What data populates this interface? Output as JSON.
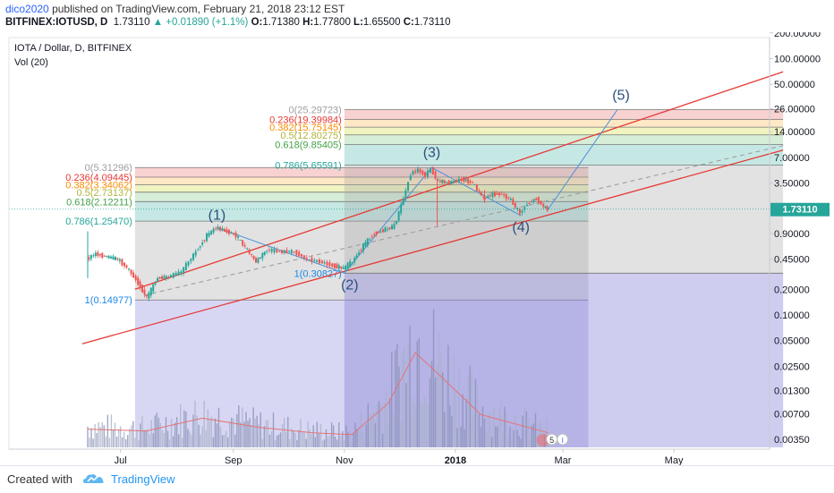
{
  "header": {
    "user": "dico2020",
    "published_text": "published on TradingView.com, February 21, 2018 23:12 EST",
    "symbol_line": "BITFINEX:IOTUSD, D",
    "last": "1.73110",
    "change": "+0.01890 (+1.1%)",
    "o_label": "O:",
    "o": "1.71380",
    "h_label": "H:",
    "h": "1.77800",
    "l_label": "L:",
    "l": "1.65500",
    "c_label": "C:",
    "c": "1.73110"
  },
  "footer": {
    "created_with": "Created with",
    "brand": "TradingView"
  },
  "chart_data": {
    "type": "candlestick",
    "title": "IOTA / Dollar, D, BITFINEX",
    "indicator": "Vol (20)",
    "y_scale": "log",
    "y_ticks": [
      "200.00000",
      "100.00000",
      "50.00000",
      "26.00000",
      "14.00000",
      "7.00000",
      "3.50000",
      "1.73110",
      "0.90000",
      "0.45000",
      "0.20000",
      "0.10000",
      "0.05000",
      "0.02500",
      "0.01300",
      "0.00700",
      "0.00350"
    ],
    "x_ticks": [
      "Jul",
      "Sep",
      "Nov",
      "2018",
      "Mar",
      "May"
    ],
    "last_price_label": "1.73110",
    "colors": {
      "up": "#26a69a",
      "down": "#ef5350",
      "trend": "#e53935",
      "wave": "#4a90d9",
      "last_price": "#26a69a"
    },
    "price_path": [
      {
        "date": "2017-06-13",
        "close": 0.45
      },
      {
        "date": "2017-06-18",
        "close": 0.52
      },
      {
        "date": "2017-06-24",
        "close": 0.48
      },
      {
        "date": "2017-06-30",
        "close": 0.45
      },
      {
        "date": "2017-07-05",
        "close": 0.36
      },
      {
        "date": "2017-07-10",
        "close": 0.26
      },
      {
        "date": "2017-07-16",
        "close": 0.16
      },
      {
        "date": "2017-07-22",
        "close": 0.27
      },
      {
        "date": "2017-07-28",
        "close": 0.28
      },
      {
        "date": "2017-08-04",
        "close": 0.32
      },
      {
        "date": "2017-08-12",
        "close": 0.55
      },
      {
        "date": "2017-08-18",
        "close": 0.85
      },
      {
        "date": "2017-08-23",
        "close": 1.05
      },
      {
        "date": "2017-08-29",
        "close": 0.95
      },
      {
        "date": "2017-09-03",
        "close": 0.85
      },
      {
        "date": "2017-09-08",
        "close": 0.62
      },
      {
        "date": "2017-09-14",
        "close": 0.42
      },
      {
        "date": "2017-09-20",
        "close": 0.58
      },
      {
        "date": "2017-09-27",
        "close": 0.55
      },
      {
        "date": "2017-10-05",
        "close": 0.55
      },
      {
        "date": "2017-10-12",
        "close": 0.45
      },
      {
        "date": "2017-10-19",
        "close": 0.42
      },
      {
        "date": "2017-10-26",
        "close": 0.38
      },
      {
        "date": "2017-11-01",
        "close": 0.35
      },
      {
        "date": "2017-11-06",
        "close": 0.42
      },
      {
        "date": "2017-11-12",
        "close": 0.65
      },
      {
        "date": "2017-11-18",
        "close": 0.9
      },
      {
        "date": "2017-11-24",
        "close": 1.0
      },
      {
        "date": "2017-11-29",
        "close": 1.1
      },
      {
        "date": "2017-12-04",
        "close": 2.3
      },
      {
        "date": "2017-12-08",
        "close": 4.5
      },
      {
        "date": "2017-12-12",
        "close": 5.0
      },
      {
        "date": "2017-12-16",
        "close": 4.3
      },
      {
        "date": "2017-12-19",
        "close": 5.1
      },
      {
        "date": "2017-12-23",
        "close": 3.7
      },
      {
        "date": "2017-12-29",
        "close": 3.5
      },
      {
        "date": "2018-01-05",
        "close": 3.9
      },
      {
        "date": "2018-01-11",
        "close": 3.5
      },
      {
        "date": "2018-01-17",
        "close": 2.3
      },
      {
        "date": "2018-01-22",
        "close": 2.6
      },
      {
        "date": "2018-01-27",
        "close": 2.6
      },
      {
        "date": "2018-02-01",
        "close": 2.2
      },
      {
        "date": "2018-02-06",
        "close": 1.55
      },
      {
        "date": "2018-02-10",
        "close": 2.0
      },
      {
        "date": "2018-02-15",
        "close": 2.3
      },
      {
        "date": "2018-02-19",
        "close": 1.85
      },
      {
        "date": "2018-02-21",
        "close": 1.7311
      }
    ],
    "volume_ma": [
      {
        "date": "2017-06-13",
        "v": 0.5
      },
      {
        "date": "2017-07-15",
        "v": 0.45
      },
      {
        "date": "2017-08-15",
        "v": 0.8
      },
      {
        "date": "2017-09-15",
        "v": 0.55
      },
      {
        "date": "2017-10-15",
        "v": 0.4
      },
      {
        "date": "2017-11-05",
        "v": 0.35
      },
      {
        "date": "2017-11-25",
        "v": 1.2
      },
      {
        "date": "2017-12-10",
        "v": 2.6
      },
      {
        "date": "2017-12-25",
        "v": 1.9
      },
      {
        "date": "2018-01-15",
        "v": 0.9
      },
      {
        "date": "2018-02-21",
        "v": 0.4
      }
    ],
    "fib_retracements": [
      {
        "from_date": "2017-07-09",
        "to_date": "2018-03-15",
        "levels": [
          {
            "ratio": "0",
            "price": 5.31296,
            "label": "0(5.31296)"
          },
          {
            "ratio": "0.236",
            "price": 4.09445,
            "label": "0.236(4.09445)"
          },
          {
            "ratio": "0.382",
            "price": 3.34062,
            "label": "0.382(3.34062)"
          },
          {
            "ratio": "0.5",
            "price": 2.73137,
            "label": "0.5(2.73137)"
          },
          {
            "ratio": "0.618",
            "price": 2.12211,
            "label": "0.618(2.12211)"
          },
          {
            "ratio": "0.786",
            "price": 1.2547,
            "label": "0.786(1.25470)"
          },
          {
            "ratio": "1",
            "price": 0.14977,
            "label": "1(0.14977)"
          }
        ]
      },
      {
        "from_date": "2017-11-01",
        "to_date": "2018-06-30",
        "levels": [
          {
            "ratio": "0",
            "price": 25.29723,
            "label": "0(25.29723)"
          },
          {
            "ratio": "0.236",
            "price": 19.39984,
            "label": "0.236(19.39984)"
          },
          {
            "ratio": "0.382",
            "price": 15.75145,
            "label": "0.382(15.75145)"
          },
          {
            "ratio": "0.5",
            "price": 12.80275,
            "label": "0.5(12.80275)"
          },
          {
            "ratio": "0.618",
            "price": 9.85405,
            "label": "0.618(9.85405)"
          },
          {
            "ratio": "0.786",
            "price": 5.65591,
            "label": "0.786(5.65591)"
          },
          {
            "ratio": "1",
            "price": 0.30827,
            "label": "1(0.30827)"
          }
        ]
      }
    ],
    "fib_zone_colors": [
      "#ef9a9a",
      "#ffcc80",
      "#dce775",
      "#a5d6a7",
      "#80cbc4",
      "#90caf9"
    ],
    "elliott_waves": [
      {
        "label": "(1)",
        "date": "2017-08-23",
        "price": 1.05
      },
      {
        "label": "(2)",
        "date": "2017-11-01",
        "price": 0.30827
      },
      {
        "label": "(3)",
        "date": "2017-12-19",
        "price": 5.31
      },
      {
        "label": "(4)",
        "date": "2018-02-06",
        "price": 1.45
      },
      {
        "label": "(5)",
        "date": "2018-03-31",
        "price": 25.29723
      }
    ],
    "wave5_projection": [
      {
        "date": "2018-02-21",
        "price": 1.7311
      },
      {
        "date": "2018-03-31",
        "price": 25.29723
      }
    ],
    "channel_lines": [
      {
        "name": "upper",
        "from": {
          "date": "2017-07-09",
          "price": 0.2
        },
        "to": {
          "date": "2018-06-30",
          "price": 70
        }
      },
      {
        "name": "lower",
        "from": {
          "date": "2017-06-10",
          "price": 0.046
        },
        "to": {
          "date": "2018-06-30",
          "price": 8.5
        }
      },
      {
        "name": "middle",
        "from": {
          "date": "2017-07-14",
          "price": 0.17
        },
        "to": {
          "date": "2018-06-30",
          "price": 9.6
        }
      }
    ],
    "badge": {
      "count": "5",
      "info": "i"
    }
  }
}
